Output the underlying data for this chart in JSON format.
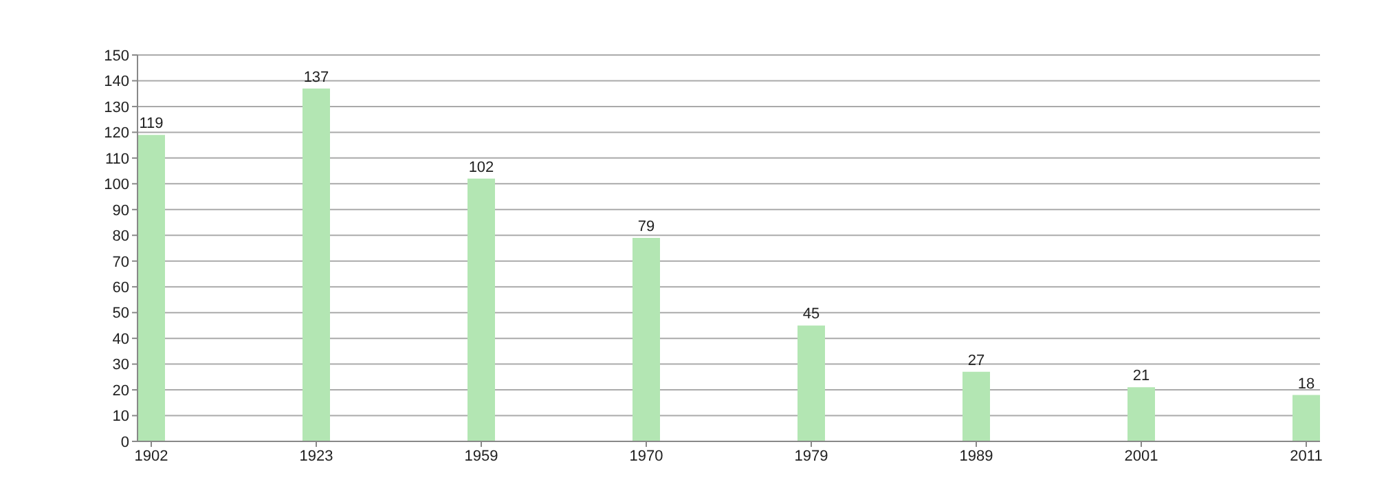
{
  "chart_data": {
    "type": "bar",
    "categories": [
      "1902",
      "1923",
      "1959",
      "1970",
      "1979",
      "1989",
      "2001",
      "2011"
    ],
    "values": [
      119,
      137,
      102,
      79,
      45,
      27,
      21,
      18
    ],
    "color": "#b3e6b3",
    "ylim": [
      0,
      150
    ],
    "yticks": [
      0,
      10,
      20,
      30,
      40,
      50,
      60,
      70,
      80,
      90,
      100,
      110,
      120,
      130,
      140,
      150
    ],
    "grid": "y",
    "data_labels": true
  }
}
